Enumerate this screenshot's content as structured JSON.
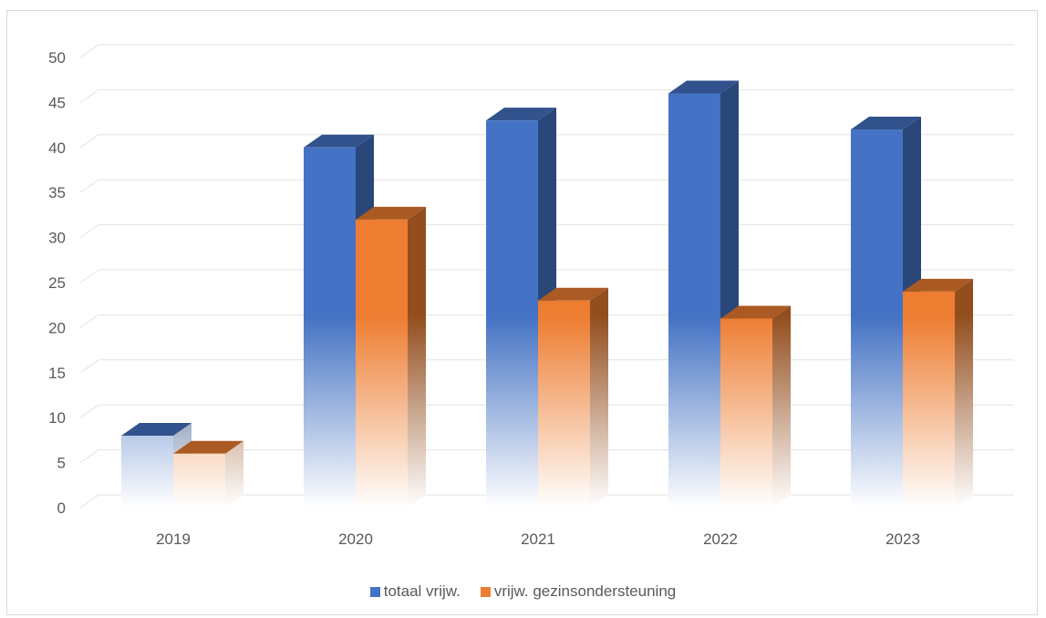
{
  "chart_data": {
    "type": "bar",
    "categories": [
      "2019",
      "2020",
      "2021",
      "2022",
      "2023"
    ],
    "series": [
      {
        "name": "totaal vrijw.",
        "values": [
          8,
          40,
          43,
          46,
          42
        ],
        "color": "#4472c4"
      },
      {
        "name": "vrijw. gezinsondersteuning",
        "values": [
          6,
          32,
          23,
          21,
          24
        ],
        "color": "#ed7d31"
      }
    ],
    "title": "",
    "xlabel": "",
    "ylabel": "",
    "ylim": [
      0,
      50
    ],
    "yticks": [
      0,
      5,
      10,
      15,
      20,
      25,
      30,
      35,
      40,
      45,
      50
    ],
    "grid": true,
    "legend_position": "bottom",
    "style": "3d-clustered-column-gradient"
  }
}
